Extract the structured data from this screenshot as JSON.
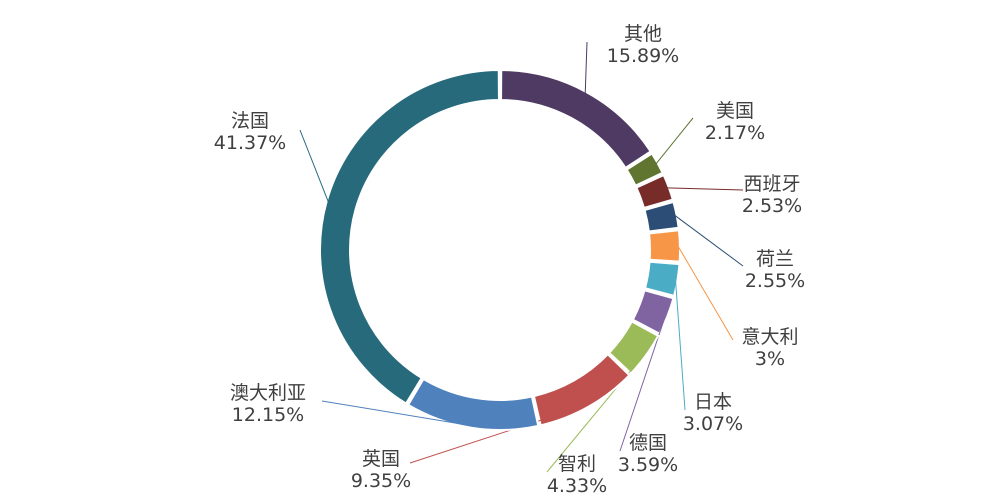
{
  "chart_data": {
    "type": "pie",
    "variant": "donut",
    "title": "",
    "slices": [
      {
        "name": "其他",
        "value": 15.89,
        "label": "15.89%",
        "color": "#4E3A63"
      },
      {
        "name": "美国",
        "value": 2.17,
        "label": "2.17%",
        "color": "#5F7530"
      },
      {
        "name": "西班牙",
        "value": 2.53,
        "label": "2.53%",
        "color": "#772C2A"
      },
      {
        "name": "荷兰",
        "value": 2.55,
        "label": "2.55%",
        "color": "#2C4D75"
      },
      {
        "name": "意大利",
        "value": 3,
        "label": "3%",
        "color": "#F79646"
      },
      {
        "name": "日本",
        "value": 3.07,
        "label": "3.07%",
        "color": "#4BACC6"
      },
      {
        "name": "德国",
        "value": 3.59,
        "label": "3.59%",
        "color": "#8064A2"
      },
      {
        "name": "智利",
        "value": 4.33,
        "label": "4.33%",
        "color": "#9BBB59"
      },
      {
        "name": "英国",
        "value": 9.35,
        "label": "9.35%",
        "color": "#C0504D"
      },
      {
        "name": "澳大利亚",
        "value": 12.15,
        "label": "12.15%",
        "color": "#4F81BD"
      },
      {
        "name": "法国",
        "value": 41.37,
        "label": "41.37%",
        "color": "#276A7C"
      }
    ],
    "legend": "none",
    "start": "top",
    "direction": "clockwise"
  }
}
